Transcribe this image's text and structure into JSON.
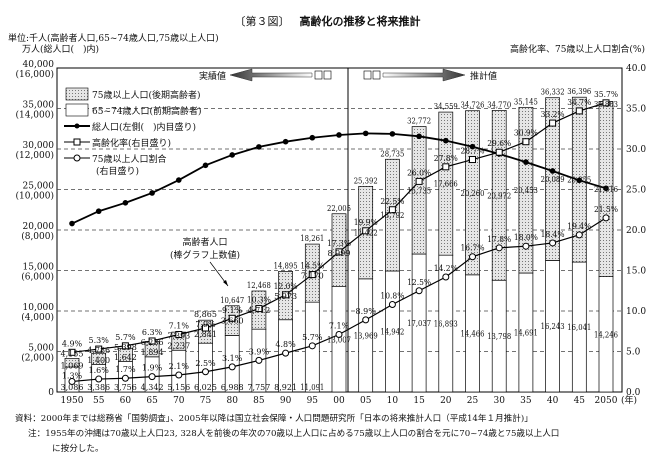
{
  "chart_data": {
    "type": "bar",
    "figure_label": "〔第３図〕",
    "title": "高齢化の推移と将来推計",
    "unit_left_line1": "単位:千人(高齢者人口,65~74歳人口,75歳以上人口)",
    "unit_left_line2": "万人(総人口(　)内)",
    "ylabel_right": "高齢化率、75歳以上人口割合(%)",
    "left_ticks": [
      "0",
      "5,000\n(2,000)",
      "10,000\n(4,000)",
      "15,000\n(6,000)",
      "20,000\n(8,000)",
      "25,000\n(10,000)",
      "30,000\n(12,000)",
      "35,000\n(14,000)",
      "40,000\n(16,000)"
    ],
    "right_ticks": [
      "0.0",
      "5.0",
      "10.0",
      "15.0",
      "20.0",
      "25.0",
      "30.0",
      "35.0",
      "40.0"
    ],
    "ylim_left": [
      0,
      40000
    ],
    "ylim_left_total_pop": [
      0,
      16000
    ],
    "ylim_right": [
      0,
      40
    ],
    "x_tick_labels": [
      "1950",
      "55",
      "60",
      "65",
      "70",
      "75",
      "80",
      "85",
      "90",
      "95",
      "00",
      "05",
      "10",
      "15",
      "20",
      "25",
      "30",
      "35",
      "40",
      "45",
      "2050"
    ],
    "x_unit": "(年)",
    "actual_label": "実績値",
    "projection_label": "推計値",
    "annotation": [
      "高齢者人口",
      "(棒グラフ上数値)"
    ],
    "legend": [
      "75歳以上人口(後期高齢者)",
      "65~74歳人口(前期高齢者)",
      "総人口(左側(　)内目盛り)",
      "高齢化率(右目盛り)",
      "75歳以上人口割合",
      "(右目盛り)"
    ],
    "years": [
      1950,
      1955,
      1960,
      1965,
      1970,
      1975,
      1980,
      1985,
      1990,
      1995,
      2000,
      2005,
      2010,
      2015,
      2020,
      2025,
      2030,
      2035,
      2040,
      2045,
      2050
    ],
    "series": [
      {
        "name": "高齢者人口",
        "labels": [
          "4,155",
          "4,786",
          "5,398",
          "6,236",
          "7,393",
          "8,865",
          "10,647",
          "12,468",
          "14,895",
          "18,261",
          "22,005",
          "25,392",
          "28,735",
          "32,772",
          "34,559",
          "34,726",
          "34,770",
          "35,145",
          "36,332",
          "36,396",
          "35,863"
        ]
      },
      {
        "name": "75歳以上人口(後期高齢者)",
        "type": "bar",
        "values": [
          1069,
          1400,
          1642,
          1894,
          2237,
          2841,
          3660,
          4712,
          5973,
          7170,
          8999,
          11422,
          13792,
          15735,
          17666,
          20260,
          20972,
          20453,
          20089,
          20355,
          21616
        ]
      },
      {
        "name": "65~74歳人口(前期高齢者)",
        "type": "bar",
        "values": [
          3086,
          3386,
          3756,
          4342,
          5156,
          6025,
          6988,
          7757,
          8921,
          11091,
          13007,
          13969,
          14942,
          17037,
          16893,
          14466,
          13798,
          14691,
          16243,
          16041,
          14246
        ]
      },
      {
        "name": "総人口",
        "type": "line",
        "axis": "left (万人)",
        "values": [
          8320,
          8928,
          9342,
          9828,
          10467,
          11194,
          11706,
          12105,
          12361,
          12557,
          12693,
          12771,
          12747,
          12627,
          12411,
          12114,
          11758,
          11353,
          10915,
          10454,
          10059
        ]
      },
      {
        "name": "高齢化率",
        "type": "line",
        "axis": "right",
        "values": [
          4.9,
          5.3,
          5.7,
          6.3,
          7.1,
          7.9,
          9.1,
          10.3,
          12.0,
          14.5,
          17.3,
          19.9,
          22.5,
          26.0,
          27.8,
          28.7,
          29.6,
          30.9,
          33.2,
          34.7,
          35.7
        ]
      },
      {
        "name": "75歳以上人口割合",
        "type": "line",
        "axis": "right",
        "values": [
          1.3,
          1.6,
          1.7,
          1.9,
          2.1,
          2.5,
          3.1,
          3.9,
          4.8,
          5.7,
          7.1,
          8.9,
          10.8,
          12.5,
          14.2,
          16.7,
          17.8,
          18.0,
          18.4,
          19.4,
          21.5
        ]
      }
    ],
    "grid": "horizontal dashed"
  },
  "notes": {
    "source": "資料：2000年までは総務省「国勢調査」、2005年以降は国立社会保障・人口問題研究所「日本の将来推計人口（平成14年１月推計)」",
    "note1": "注：1955年の沖縄は70歳以上人口23, 328人を前後の年次の70歳以上人口に占める75歳以上人口の割合を元に70~74歳と75歳以上人口",
    "note2": "に按分した。"
  }
}
